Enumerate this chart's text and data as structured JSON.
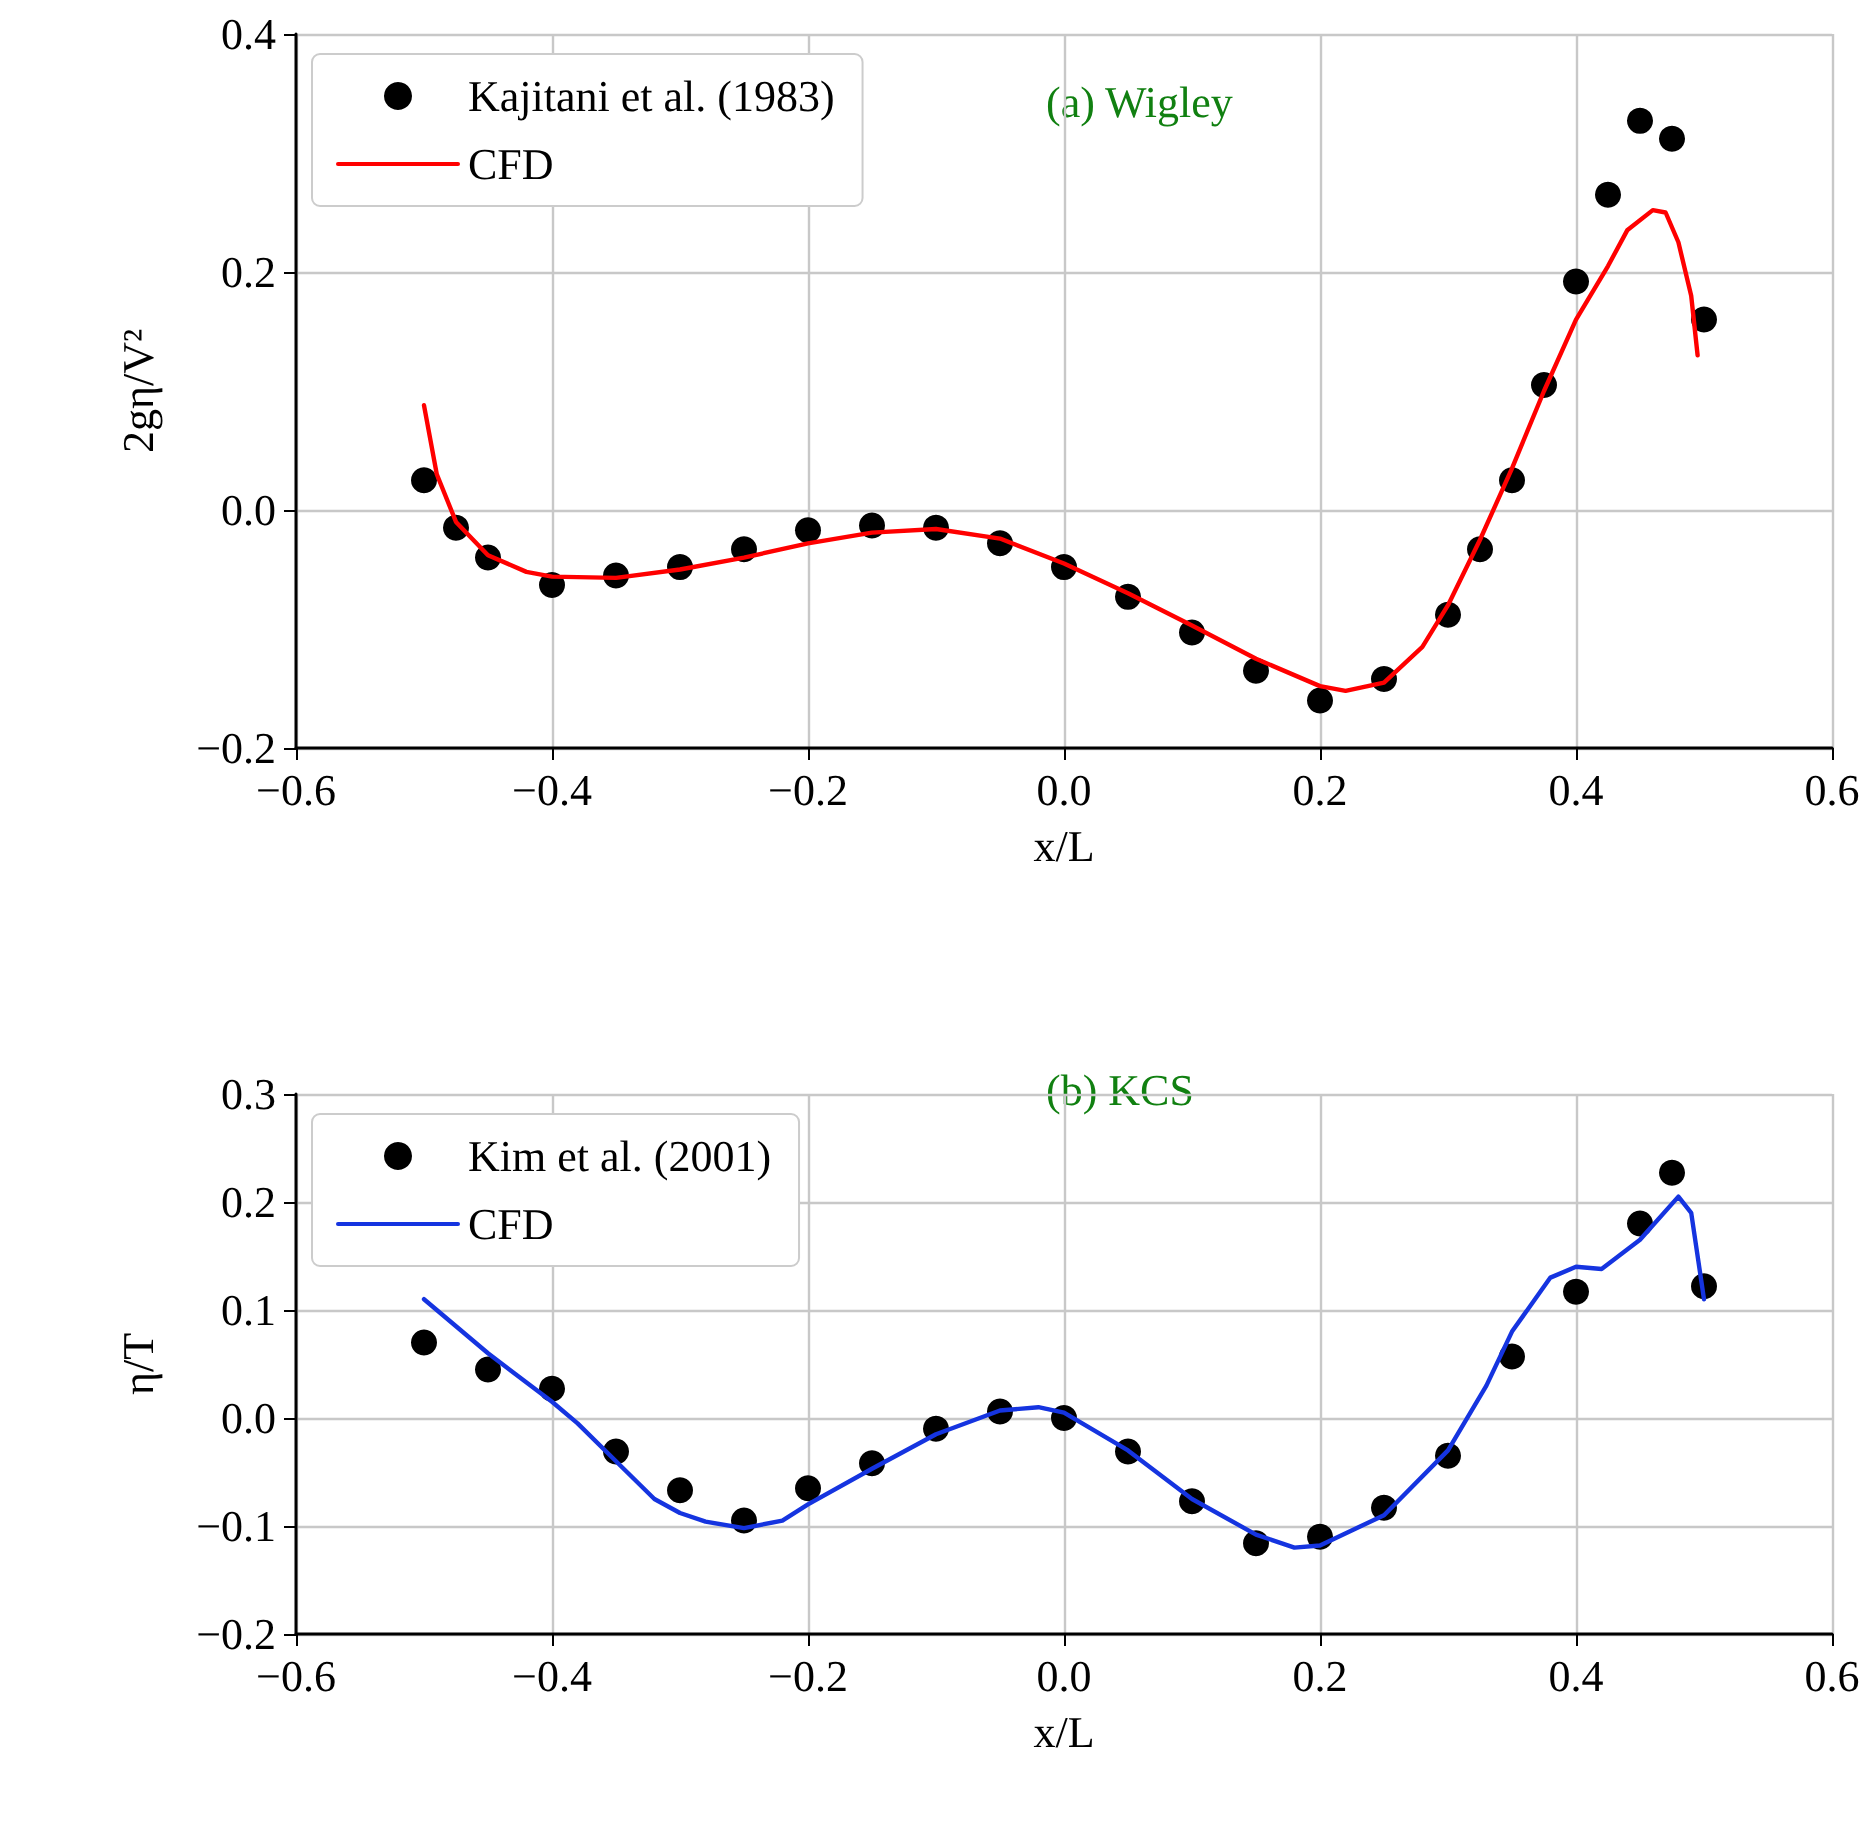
{
  "chart_data": [
    {
      "type": "line",
      "xlabel": "x/L",
      "ylabel": "2gη/V²",
      "annotations": [
        "(a) Wigley"
      ],
      "xlim": [
        -0.6,
        0.6
      ],
      "ylim": [
        -0.2,
        0.4
      ],
      "xticks": [
        {
          "value": -0.6,
          "label": "−0.6"
        },
        {
          "value": -0.4,
          "label": "−0.4"
        },
        {
          "value": -0.2,
          "label": "−0.2"
        },
        {
          "value": 0,
          "label": "0.0"
        },
        {
          "value": 0.2,
          "label": "0.2"
        },
        {
          "value": 0.4,
          "label": "0.4"
        },
        {
          "value": 0.6,
          "label": "0.6"
        }
      ],
      "yticks": [
        {
          "value": -0.2,
          "label": "−0.2"
        },
        {
          "value": 0,
          "label": "0.0"
        },
        {
          "value": 0.2,
          "label": "0.2"
        },
        {
          "value": 0.4,
          "label": "0.4"
        }
      ],
      "grid": true,
      "legend": "top left",
      "series": [
        {
          "name": "Kajitani et al. (1983)",
          "type": "scatter",
          "marker": "circle",
          "color": "#000000",
          "x": [
            -0.5,
            -0.475,
            -0.45,
            -0.4,
            -0.35,
            -0.3,
            -0.25,
            -0.2,
            -0.15,
            -0.1,
            -0.05,
            0,
            0.05,
            0.1,
            0.15,
            0.2,
            0.25,
            0.3,
            0.325,
            0.35,
            0.375,
            0.4,
            0.425,
            0.45,
            0.475,
            0.5
          ],
          "values": [
            0.025,
            -0.015,
            -0.04,
            -0.063,
            -0.055,
            -0.048,
            -0.033,
            -0.017,
            -0.013,
            -0.015,
            -0.028,
            -0.048,
            -0.073,
            -0.103,
            -0.135,
            -0.16,
            -0.142,
            -0.088,
            -0.033,
            0.025,
            0.105,
            0.192,
            0.265,
            0.327,
            0.312,
            0.16
          ]
        },
        {
          "name": "CFD",
          "line_style": "solid",
          "color": "#ff0000",
          "x": [
            -0.5,
            -0.49,
            -0.475,
            -0.45,
            -0.42,
            -0.4,
            -0.35,
            -0.3,
            -0.25,
            -0.2,
            -0.15,
            -0.1,
            -0.05,
            0,
            0.05,
            0.1,
            0.15,
            0.2,
            0.22,
            0.25,
            0.28,
            0.3,
            0.325,
            0.35,
            0.375,
            0.4,
            0.425,
            0.44,
            0.46,
            0.47,
            0.48,
            0.49,
            0.495
          ],
          "values": [
            0.088,
            0.03,
            -0.01,
            -0.038,
            -0.052,
            -0.056,
            -0.057,
            -0.05,
            -0.04,
            -0.028,
            -0.019,
            -0.016,
            -0.024,
            -0.045,
            -0.07,
            -0.097,
            -0.125,
            -0.148,
            -0.152,
            -0.145,
            -0.115,
            -0.08,
            -0.025,
            0.035,
            0.1,
            0.16,
            0.205,
            0.235,
            0.252,
            0.25,
            0.225,
            0.18,
            0.13
          ]
        }
      ]
    },
    {
      "type": "line",
      "xlabel": "x/L",
      "ylabel": "η/T",
      "annotations": [
        "(b) KCS"
      ],
      "xlim": [
        -0.6,
        0.6
      ],
      "ylim": [
        -0.2,
        0.3
      ],
      "xticks": [
        {
          "value": -0.6,
          "label": "−0.6"
        },
        {
          "value": -0.4,
          "label": "−0.4"
        },
        {
          "value": -0.2,
          "label": "−0.2"
        },
        {
          "value": 0,
          "label": "0.0"
        },
        {
          "value": 0.2,
          "label": "0.2"
        },
        {
          "value": 0.4,
          "label": "0.4"
        },
        {
          "value": 0.6,
          "label": "0.6"
        }
      ],
      "yticks": [
        {
          "value": -0.2,
          "label": "−0.2"
        },
        {
          "value": -0.1,
          "label": "−0.1"
        },
        {
          "value": 0,
          "label": "0.0"
        },
        {
          "value": 0.1,
          "label": "0.1"
        },
        {
          "value": 0.2,
          "label": "0.2"
        },
        {
          "value": 0.3,
          "label": "0.3"
        }
      ],
      "grid": true,
      "legend": "top left",
      "series": [
        {
          "name": "Kim et al. (2001)",
          "type": "scatter",
          "marker": "circle",
          "color": "#000000",
          "x": [
            -0.5,
            -0.45,
            -0.4,
            -0.35,
            -0.3,
            -0.25,
            -0.2,
            -0.15,
            -0.1,
            -0.05,
            0,
            0.05,
            0.1,
            0.15,
            0.2,
            0.25,
            0.3,
            0.35,
            0.4,
            0.45,
            0.475,
            0.5
          ],
          "values": [
            0.07,
            0.045,
            0.027,
            -0.031,
            -0.067,
            -0.095,
            -0.065,
            -0.042,
            -0.01,
            0.006,
            0.0,
            -0.031,
            -0.077,
            -0.116,
            -0.11,
            -0.083,
            -0.035,
            0.057,
            0.117,
            0.18,
            0.227,
            0.122
          ]
        },
        {
          "name": "CFD",
          "line_style": "solid",
          "color": "#1534e0",
          "x": [
            -0.5,
            -0.45,
            -0.4,
            -0.38,
            -0.35,
            -0.32,
            -0.3,
            -0.28,
            -0.25,
            -0.22,
            -0.2,
            -0.15,
            -0.1,
            -0.05,
            -0.02,
            0,
            0.05,
            0.1,
            0.15,
            0.18,
            0.2,
            0.25,
            0.3,
            0.33,
            0.35,
            0.38,
            0.4,
            0.42,
            0.45,
            0.48,
            0.49,
            0.5
          ],
          "values": [
            0.11,
            0.06,
            0.015,
            -0.005,
            -0.04,
            -0.075,
            -0.088,
            -0.096,
            -0.102,
            -0.095,
            -0.08,
            -0.047,
            -0.015,
            0.007,
            0.01,
            0.005,
            -0.03,
            -0.075,
            -0.108,
            -0.12,
            -0.118,
            -0.09,
            -0.03,
            0.03,
            0.08,
            0.13,
            0.14,
            0.138,
            0.165,
            0.205,
            0.19,
            0.11
          ]
        }
      ]
    }
  ]
}
